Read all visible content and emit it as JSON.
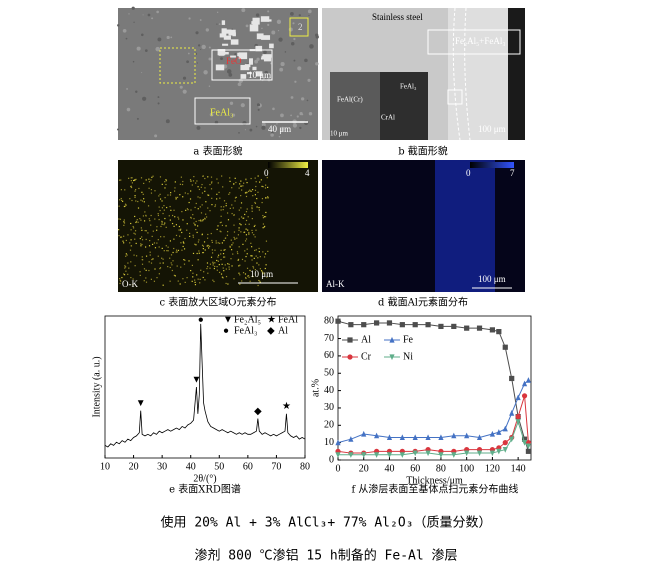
{
  "panels": {
    "a": {
      "caption": "a 表面形貌",
      "labels": [
        "2",
        "FeO",
        "10 μm",
        "FeAl₃",
        "40 μm"
      ]
    },
    "b": {
      "caption": "b 截面形貌",
      "labels": [
        "Stainless steel",
        "Fe₂Al₅+FeAl₃",
        "FeAl₃",
        "FeAl(Cr)",
        "CrAl",
        "10 μm",
        "100 μm"
      ]
    },
    "c": {
      "caption": "c 表面放大区域O元素分布",
      "labels": [
        "O-K",
        "10 μm"
      ],
      "colorbar": [
        "0",
        "4"
      ]
    },
    "d": {
      "caption": "d 截面Al元素面分布",
      "labels": [
        "Al-K",
        "100 μm"
      ],
      "colorbar": [
        "0",
        "7"
      ]
    }
  },
  "chart_data": [
    {
      "type": "line",
      "caption": "e 表面XRD图谱",
      "xlabel": "2θ/(°)",
      "ylabel": "Intensity (a. u.)",
      "color": "#000000",
      "x": [
        10,
        11,
        12,
        13,
        14,
        15,
        16,
        17,
        18,
        19,
        20,
        21,
        22,
        22.5,
        23,
        24,
        25,
        26,
        27,
        28,
        29,
        30,
        31,
        32,
        33,
        34,
        35,
        36,
        37,
        38,
        39,
        40,
        41,
        42,
        42.5,
        43,
        43.5,
        44,
        44.5,
        45,
        46,
        47,
        48,
        49,
        50,
        51,
        52,
        53,
        54,
        55,
        56,
        57,
        58,
        59,
        60,
        61,
        62,
        63,
        63.5,
        64,
        65,
        66,
        67,
        68,
        69,
        70,
        71,
        72,
        73,
        73.5,
        74,
        75,
        76,
        77,
        78,
        79,
        80
      ],
      "values": [
        18,
        17,
        19,
        18,
        20,
        19,
        21,
        20,
        22,
        21,
        23,
        24,
        26,
        40,
        25,
        24,
        25,
        24,
        26,
        25,
        27,
        26,
        27,
        28,
        27,
        28,
        29,
        28,
        30,
        29,
        31,
        32,
        34,
        55,
        38,
        50,
        95,
        70,
        45,
        40,
        33,
        30,
        29,
        28,
        27,
        28,
        27,
        26,
        27,
        26,
        25,
        26,
        25,
        26,
        25,
        25,
        26,
        27,
        35,
        27,
        25,
        26,
        25,
        24,
        25,
        24,
        25,
        26,
        27,
        38,
        26,
        24,
        23,
        24,
        22,
        23,
        22
      ],
      "xlim": [
        10,
        80
      ],
      "xticks": [
        10,
        20,
        30,
        40,
        50,
        60,
        70,
        80
      ],
      "ylim": [
        10,
        100
      ],
      "legend": [
        {
          "symbol": "▼",
          "name": "Fe₂Al₅"
        },
        {
          "symbol": "★",
          "name": "FeAl"
        },
        {
          "symbol": "●",
          "name": "FeAl₃"
        },
        {
          "symbol": "◆",
          "name": "Al"
        }
      ],
      "annotations": [
        {
          "text": "▼",
          "x": 22.5
        },
        {
          "text": "▼",
          "x": 42
        },
        {
          "text": "●",
          "x": 43.5
        },
        {
          "text": "◆",
          "x": 63.5
        },
        {
          "text": "★",
          "x": 73.5
        }
      ]
    },
    {
      "type": "line",
      "caption": "f 从渗层表面至基体点扫元素分布曲线",
      "xlabel": "Thickness/μm",
      "ylabel": "at.%",
      "x": [
        0,
        10,
        20,
        30,
        40,
        50,
        60,
        70,
        80,
        90,
        100,
        110,
        120,
        125,
        130,
        135,
        140,
        145,
        148
      ],
      "series": [
        {
          "name": "Al",
          "color": "#4d4d4d",
          "marker": "square",
          "values": [
            80,
            78,
            78,
            79,
            79,
            78,
            78,
            78,
            77,
            77,
            76,
            76,
            75,
            74,
            65,
            47,
            25,
            12,
            5
          ]
        },
        {
          "name": "Fe",
          "color": "#4472c4",
          "marker": "triangle-up",
          "values": [
            10,
            12,
            15,
            14,
            13,
            13,
            13,
            13,
            13,
            14,
            14,
            13,
            15,
            16,
            18,
            27,
            36,
            44,
            46
          ]
        },
        {
          "name": "Cr",
          "color": "#d9363e",
          "marker": "circle",
          "values": [
            5,
            4,
            4,
            5,
            5,
            5,
            5,
            6,
            5,
            5,
            6,
            6,
            6,
            7,
            10,
            13,
            25,
            37,
            10
          ]
        },
        {
          "name": "Ni",
          "color": "#5fae8a",
          "marker": "triangle-down",
          "values": [
            3,
            3,
            3,
            3,
            3,
            3,
            4,
            4,
            3,
            3,
            4,
            4,
            4,
            5,
            6,
            12,
            22,
            10,
            8
          ]
        }
      ],
      "xlim": [
        0,
        150
      ],
      "xticks": [
        0,
        20,
        40,
        60,
        80,
        100,
        120,
        140
      ],
      "ylim": [
        0,
        83
      ],
      "yticks": [
        0,
        10,
        20,
        30,
        40,
        50,
        60,
        70,
        80
      ]
    }
  ],
  "footer": [
    "使用 20% Al + 3% AlCl₃+ 77% Al₂O₃（质量分数）",
    "渗剂 800 ℃渗铝 15 h制备的 Fe-Al 渗层"
  ]
}
